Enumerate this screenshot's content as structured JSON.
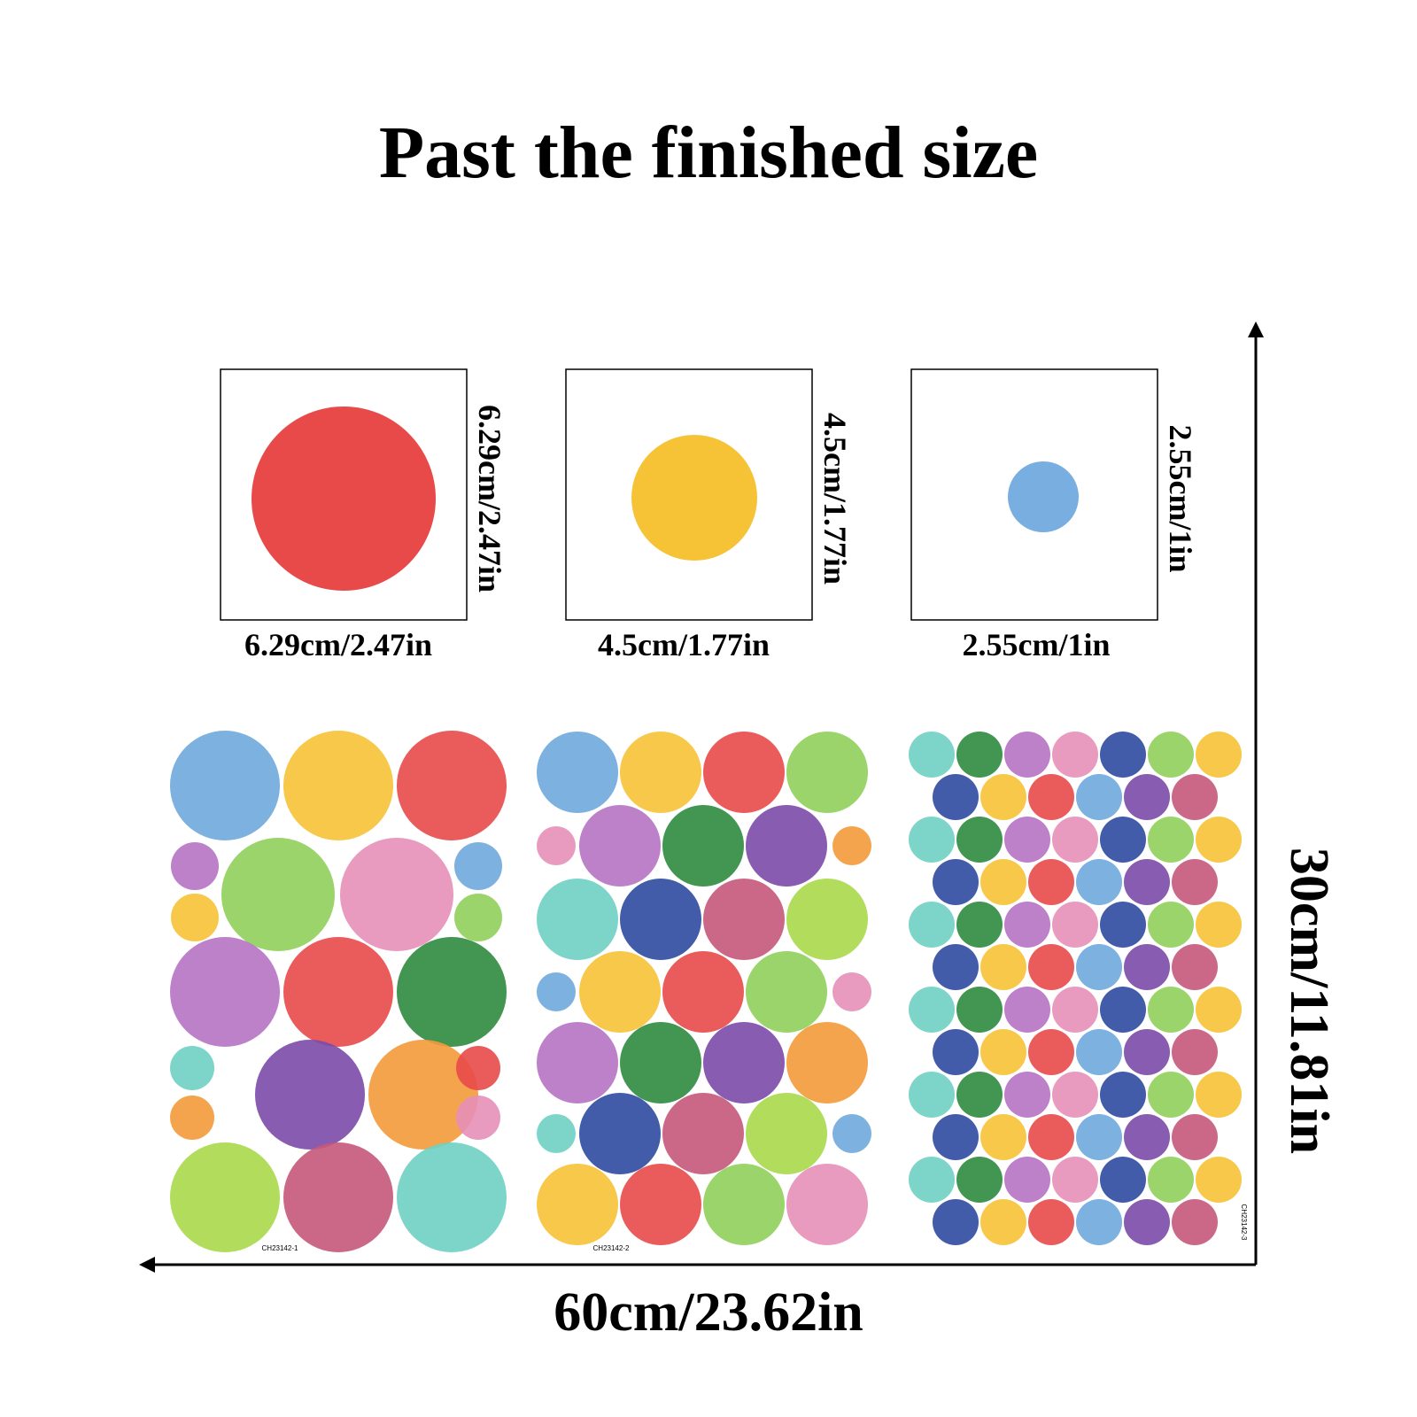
{
  "title": "Past the finished size",
  "samples": [
    {
      "width": "6.29cm/2.47in",
      "height": "6.29cm/2.47in"
    },
    {
      "width": "4.5cm/1.77in",
      "height": "4.5cm/1.77in"
    },
    {
      "width": "2.55cm/1in",
      "height": "2.55cm/1in"
    }
  ],
  "sheets": [
    {
      "code": "CH23142-1"
    },
    {
      "code": "CH23142-2"
    },
    {
      "code": "CH23142-3"
    }
  ],
  "dimensions": {
    "width": "60cm/23.62in",
    "height": "30cm/11.81in"
  }
}
